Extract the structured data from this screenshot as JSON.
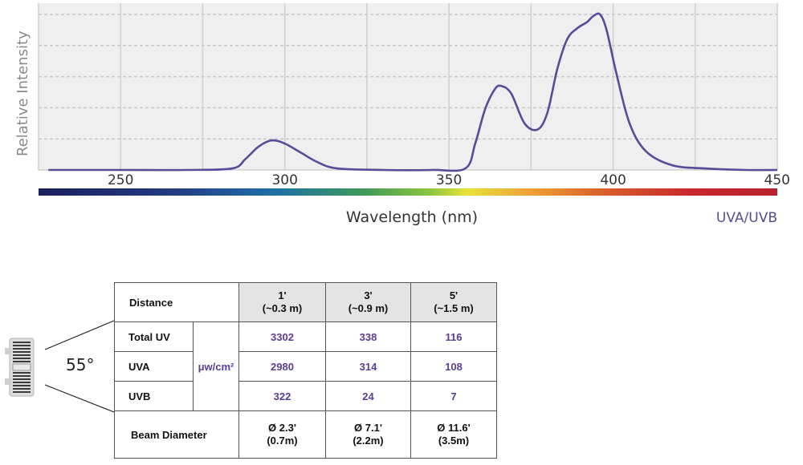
{
  "chart_data": {
    "type": "line",
    "ylabel": "Relative Intensity",
    "xlabel": "Wavelength (nm)",
    "xlim": [
      225,
      450
    ],
    "ylim": [
      0,
      1.0
    ],
    "x_ticks": [
      "250",
      "300",
      "350",
      "400",
      "450"
    ],
    "grid": "on",
    "tag": "UVA/UVB",
    "colors": {
      "line": "#5b4a9a",
      "plot_bg": "#efefef",
      "grid": "#cfcfcf"
    },
    "series": [
      {
        "x": [
          228,
          250,
          270,
          284,
          288,
          292,
          296,
          300,
          305,
          310,
          316,
          330,
          345,
          355,
          358,
          361,
          364,
          366,
          369,
          373,
          377,
          380,
          383,
          386,
          389,
          392,
          394,
          396,
          398,
          401,
          405,
          410,
          418,
          428,
          440,
          450
        ],
        "y": [
          0.0,
          0.0,
          0.0,
          0.01,
          0.07,
          0.15,
          0.19,
          0.17,
          0.11,
          0.05,
          0.01,
          0.0,
          0.0,
          0.01,
          0.17,
          0.39,
          0.52,
          0.54,
          0.49,
          0.3,
          0.26,
          0.37,
          0.65,
          0.84,
          0.91,
          0.95,
          0.99,
          1.0,
          0.9,
          0.62,
          0.3,
          0.12,
          0.03,
          0.01,
          0.0,
          0.0
        ]
      }
    ]
  },
  "table": {
    "angle": "55°",
    "distance_label": "Distance",
    "columns": [
      {
        "top": "1'",
        "bottom": "(~0.3 m)"
      },
      {
        "top": "3'",
        "bottom": "(~0.9 m)"
      },
      {
        "top": "5'",
        "bottom": "(~1.5 m)"
      }
    ],
    "unit": "μw/cm²",
    "rows": [
      {
        "label": "Total UV",
        "values": [
          "3302",
          "338",
          "116"
        ]
      },
      {
        "label": "UVA",
        "values": [
          "2980",
          "314",
          "108"
        ]
      },
      {
        "label": "UVB",
        "values": [
          "322",
          "24",
          "7"
        ]
      }
    ],
    "beam": {
      "label": "Beam Diameter",
      "values": [
        {
          "top": "Ø 2.3'",
          "bottom": "(0.7m)"
        },
        {
          "top": "Ø 7.1'",
          "bottom": "(2.2m)"
        },
        {
          "top": "Ø 11.6'",
          "bottom": "(3.5m)"
        }
      ]
    }
  }
}
